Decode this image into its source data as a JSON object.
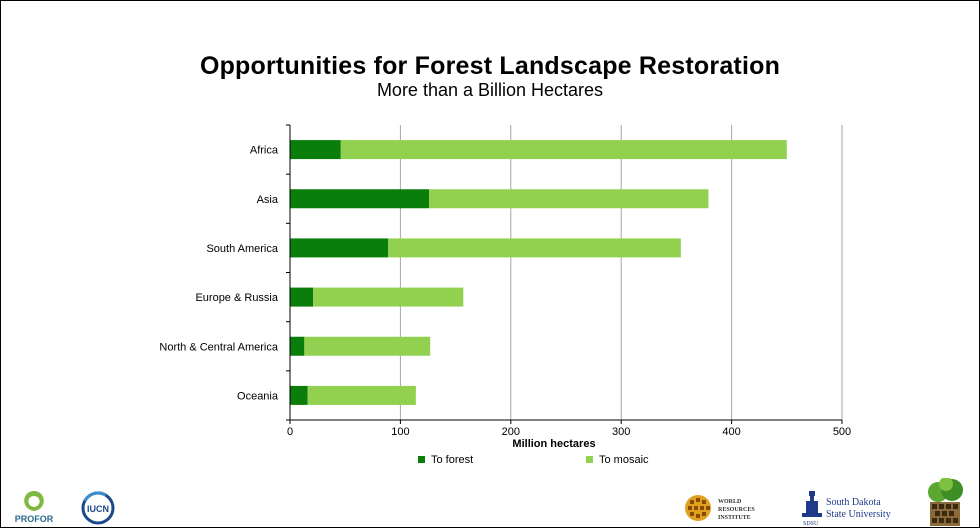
{
  "title": "Opportunities for Forest Landscape Restoration",
  "subtitle": "More than a Billion Hectares",
  "chart_data": {
    "type": "bar",
    "orientation": "horizontal",
    "stacked": true,
    "categories": [
      "Africa",
      "Asia",
      "South America",
      "Europe & Russia",
      "North & Central America",
      "Oceania"
    ],
    "series": [
      {
        "name": "To forest",
        "color": "#0a7d0a",
        "values": [
          46,
          126,
          89,
          21,
          13,
          16
        ]
      },
      {
        "name": "To mosaic",
        "color": "#92d050",
        "values": [
          404,
          253,
          265,
          136,
          114,
          98
        ]
      }
    ],
    "xlabel": "Million hectares",
    "xlim": [
      0,
      500
    ],
    "xticks": [
      0,
      100,
      200,
      300,
      400,
      500
    ],
    "grid": true,
    "legend_position": "bottom"
  },
  "logos": {
    "profor": "PROFOR",
    "iucn": "IUCN",
    "wri": [
      "WORLD",
      "RESOURCES",
      "INSTITUTE"
    ],
    "sdsu": [
      "South Dakota",
      "State University",
      "SDSU"
    ]
  }
}
